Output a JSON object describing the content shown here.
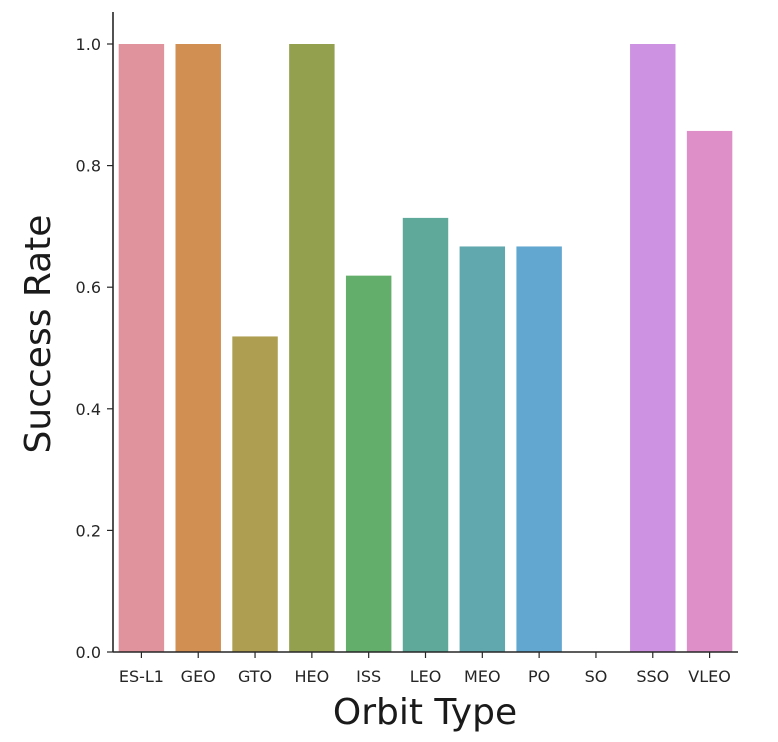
{
  "chart_data": {
    "type": "bar",
    "categories": [
      "ES-L1",
      "GEO",
      "GTO",
      "HEO",
      "ISS",
      "LEO",
      "MEO",
      "PO",
      "SO",
      "SSO",
      "VLEO"
    ],
    "values": [
      1.0,
      1.0,
      0.519,
      1.0,
      0.619,
      0.714,
      0.667,
      0.667,
      0.0,
      1.0,
      0.857
    ],
    "colors": [
      "#e0929d",
      "#d28f52",
      "#ad9e51",
      "#93a14f",
      "#63ae6a",
      "#5fa99a",
      "#61a8ae",
      "#62a7d0",
      "#a5a5e8",
      "#cd93e2",
      "#df8fc7"
    ],
    "xlabel": "Orbit Type",
    "ylabel": "Success Rate",
    "ylim": [
      0,
      1.05
    ],
    "yticks": [
      0.0,
      0.2,
      0.4,
      0.6,
      0.8,
      1.0
    ],
    "ytick_labels": [
      "0.0",
      "0.2",
      "0.4",
      "0.6",
      "0.8",
      "1.0"
    ],
    "grid": false,
    "legend": "none"
  }
}
